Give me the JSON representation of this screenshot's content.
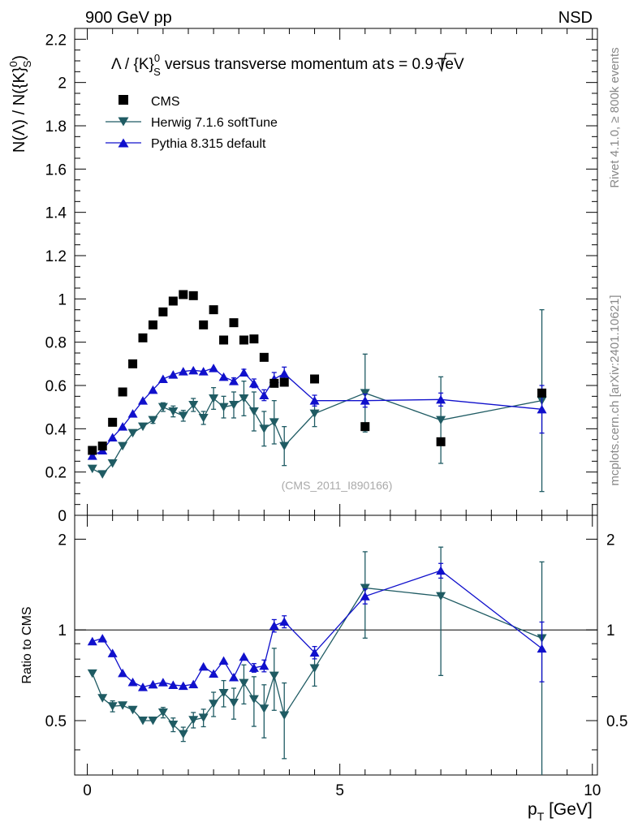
{
  "header": {
    "left_label": "900 GeV pp",
    "right_label": "NSD"
  },
  "side_labels": {
    "rivet": "Rivet 4.1.0, ≥ 800k events",
    "mcplots": "mcplots.cern.ch [arXiv:2401.10621]"
  },
  "chart_data": {
    "type": "scatter",
    "title": "Λ / {K}⁰ₛ versus transverse momentum at √s = 0.9 TeV",
    "title_parts": {
      "pre": "Λ / {K}",
      "sup": "0",
      "sub": "S",
      "mid": " versus transverse momentum at",
      "sqrt": "s",
      "post": " = 0.9 TeV"
    },
    "analysis_label": "(CMS_2011_I890166)",
    "xlabel": "p",
    "xlabel_sub": "T",
    "xlabel_unit": " [GeV]",
    "ylabel": "N(Λ)  /  N({K}⁰ₛ)",
    "ylabel_parts": {
      "pre": "N(Λ)  /  N({K}",
      "sup": "0",
      "sub": "S",
      "post": ")"
    },
    "ratio_ylabel": "Ratio to CMS",
    "xlim": [
      -0.25,
      10.1
    ],
    "ylim": [
      0,
      2.25
    ],
    "ratio_ylim": [
      0.33,
      2.4
    ],
    "x_ticks": [
      {
        "value": 0,
        "label": "0"
      },
      {
        "value": 5,
        "label": "5"
      },
      {
        "value": 10,
        "label": "10"
      }
    ],
    "y_ticks": [
      {
        "value": 0,
        "label": "0"
      },
      {
        "value": 0.2,
        "label": "0.2"
      },
      {
        "value": 0.4,
        "label": "0.4"
      },
      {
        "value": 0.6,
        "label": "0.6"
      },
      {
        "value": 0.8,
        "label": "0.8"
      },
      {
        "value": 1.0,
        "label": "1"
      },
      {
        "value": 1.2,
        "label": "1.2"
      },
      {
        "value": 1.4,
        "label": "1.4"
      },
      {
        "value": 1.6,
        "label": "1.6"
      },
      {
        "value": 1.8,
        "label": "1.8"
      },
      {
        "value": 2.0,
        "label": "2"
      },
      {
        "value": 2.2,
        "label": "2.2"
      }
    ],
    "ratio_ticks": [
      {
        "value": 0.5,
        "label": "0.5"
      },
      {
        "value": 1,
        "label": "1"
      },
      {
        "value": 2,
        "label": "2"
      }
    ],
    "legend": [
      {
        "name": "CMS",
        "marker": "square",
        "color": "#000000"
      },
      {
        "name": "Herwig 7.1.6 softTune",
        "marker": "triangle-down",
        "color": "#1f5b63"
      },
      {
        "name": "Pythia 8.315 default",
        "marker": "triangle-up",
        "color": "#1010cc"
      }
    ],
    "x": [
      0.1,
      0.3,
      0.5,
      0.7,
      0.9,
      1.1,
      1.3,
      1.5,
      1.7,
      1.9,
      2.1,
      2.3,
      2.5,
      2.7,
      2.9,
      3.1,
      3.3,
      3.5,
      3.7,
      3.9,
      4.5,
      5.5,
      7.0,
      9.0
    ],
    "series": [
      {
        "name": "CMS",
        "values": [
          0.3,
          0.32,
          0.43,
          0.57,
          0.7,
          0.82,
          0.88,
          0.94,
          0.99,
          1.02,
          1.015,
          0.88,
          0.95,
          0.81,
          0.89,
          0.81,
          0.815,
          0.73,
          0.61,
          0.615,
          0.63,
          0.41,
          0.34,
          0.565
        ],
        "errors": [
          0,
          0,
          0,
          0,
          0,
          0,
          0,
          0,
          0,
          0,
          0,
          0,
          0,
          0,
          0,
          0,
          0,
          0,
          0,
          0,
          0,
          0,
          0,
          0
        ]
      },
      {
        "name": "Herwig 7.1.6 softTune",
        "values": [
          0.215,
          0.19,
          0.24,
          0.32,
          0.38,
          0.41,
          0.44,
          0.5,
          0.48,
          0.46,
          0.51,
          0.45,
          0.54,
          0.5,
          0.51,
          0.54,
          0.48,
          0.4,
          0.43,
          0.32,
          0.47,
          0.565,
          0.44,
          0.53
        ],
        "errors": [
          0.005,
          0.005,
          0.01,
          0.01,
          0.01,
          0.01,
          0.015,
          0.02,
          0.025,
          0.025,
          0.03,
          0.03,
          0.05,
          0.05,
          0.06,
          0.08,
          0.09,
          0.08,
          0.1,
          0.09,
          0.06,
          0.18,
          0.2,
          0.42
        ]
      },
      {
        "name": "Pythia 8.315 default",
        "values": [
          0.275,
          0.3,
          0.36,
          0.41,
          0.47,
          0.53,
          0.58,
          0.63,
          0.65,
          0.665,
          0.67,
          0.665,
          0.68,
          0.64,
          0.62,
          0.66,
          0.61,
          0.555,
          0.63,
          0.655,
          0.53,
          0.53,
          0.535,
          0.49
        ],
        "errors": [
          0.005,
          0.005,
          0.005,
          0.005,
          0.005,
          0.005,
          0.005,
          0.01,
          0.01,
          0.01,
          0.01,
          0.01,
          0.01,
          0.01,
          0.015,
          0.015,
          0.02,
          0.025,
          0.03,
          0.03,
          0.025,
          0.03,
          0.03,
          0.11
        ]
      }
    ]
  }
}
